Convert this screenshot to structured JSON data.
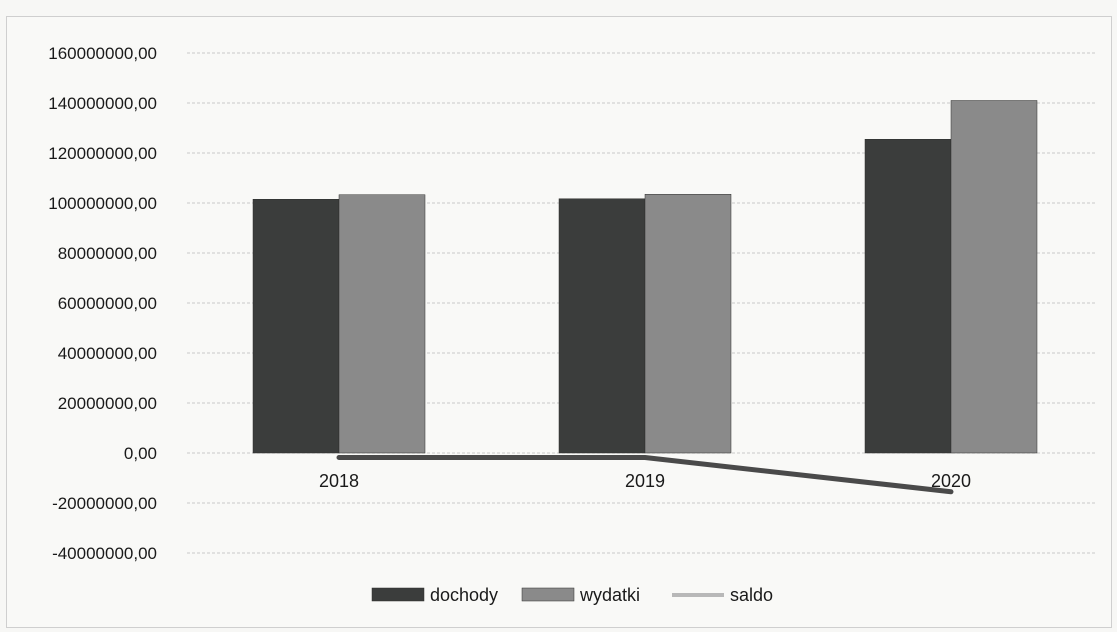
{
  "chart_data": {
    "type": "bar",
    "title": "",
    "xlabel": "",
    "ylabel": "",
    "categories": [
      "2018",
      "2019",
      "2020"
    ],
    "series": [
      {
        "name": "dochody",
        "type": "bar",
        "values": [
          101500000,
          101700000,
          125500000
        ],
        "color": "#3b3d3c"
      },
      {
        "name": "wydatki",
        "type": "bar",
        "values": [
          103300000,
          103500000,
          141000000
        ],
        "color": "#8a8a8a"
      },
      {
        "name": "saldo",
        "type": "line",
        "values": [
          -1800000,
          -1800000,
          -15500000
        ],
        "color": "#4a4a4a"
      }
    ],
    "ylim": [
      -40000000,
      160000000
    ],
    "yticks": [
      {
        "value": 160000000,
        "label": "160000000,00"
      },
      {
        "value": 140000000,
        "label": "140000000,00"
      },
      {
        "value": 120000000,
        "label": "120000000,00"
      },
      {
        "value": 100000000,
        "label": "100000000,00"
      },
      {
        "value": 80000000,
        "label": "80000000,00"
      },
      {
        "value": 60000000,
        "label": "60000000,00"
      },
      {
        "value": 40000000,
        "label": "40000000,00"
      },
      {
        "value": 20000000,
        "label": "20000000,00"
      },
      {
        "value": 0,
        "label": "0,00"
      },
      {
        "value": -20000000,
        "label": "-20000000,00"
      },
      {
        "value": -40000000,
        "label": "-40000000,00"
      }
    ],
    "grid": true,
    "legend": "bottom"
  }
}
